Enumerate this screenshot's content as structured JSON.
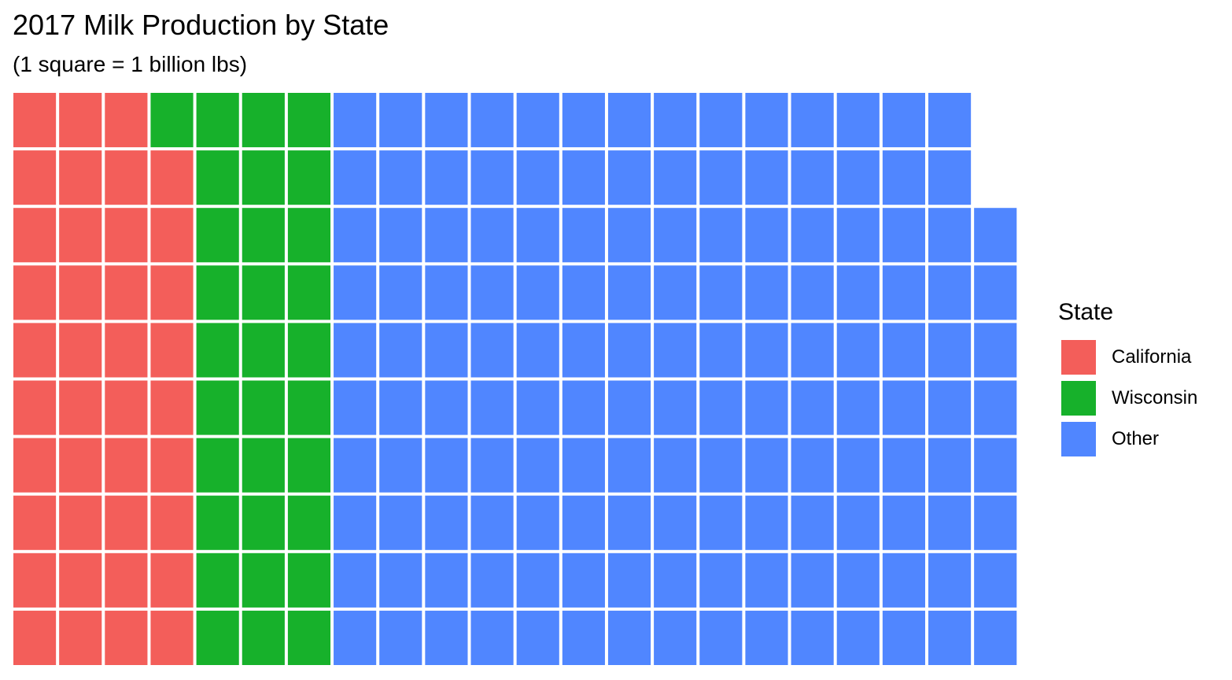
{
  "chart_data": {
    "type": "waffle",
    "title": "2017 Milk Production by State",
    "subtitle": "(1 square = 1 billion lbs)",
    "unit": "billion lbs",
    "rows": 10,
    "fill_order": "column-major, bottom to top",
    "legend_title": "State",
    "legend_position": "right",
    "series": [
      {
        "name": "California",
        "value": 39,
        "color": "#F35E5A"
      },
      {
        "name": "Wisconsin",
        "value": 31,
        "color": "#17B12B"
      },
      {
        "name": "Other",
        "value": 148,
        "color": "#5086FF"
      }
    ]
  }
}
